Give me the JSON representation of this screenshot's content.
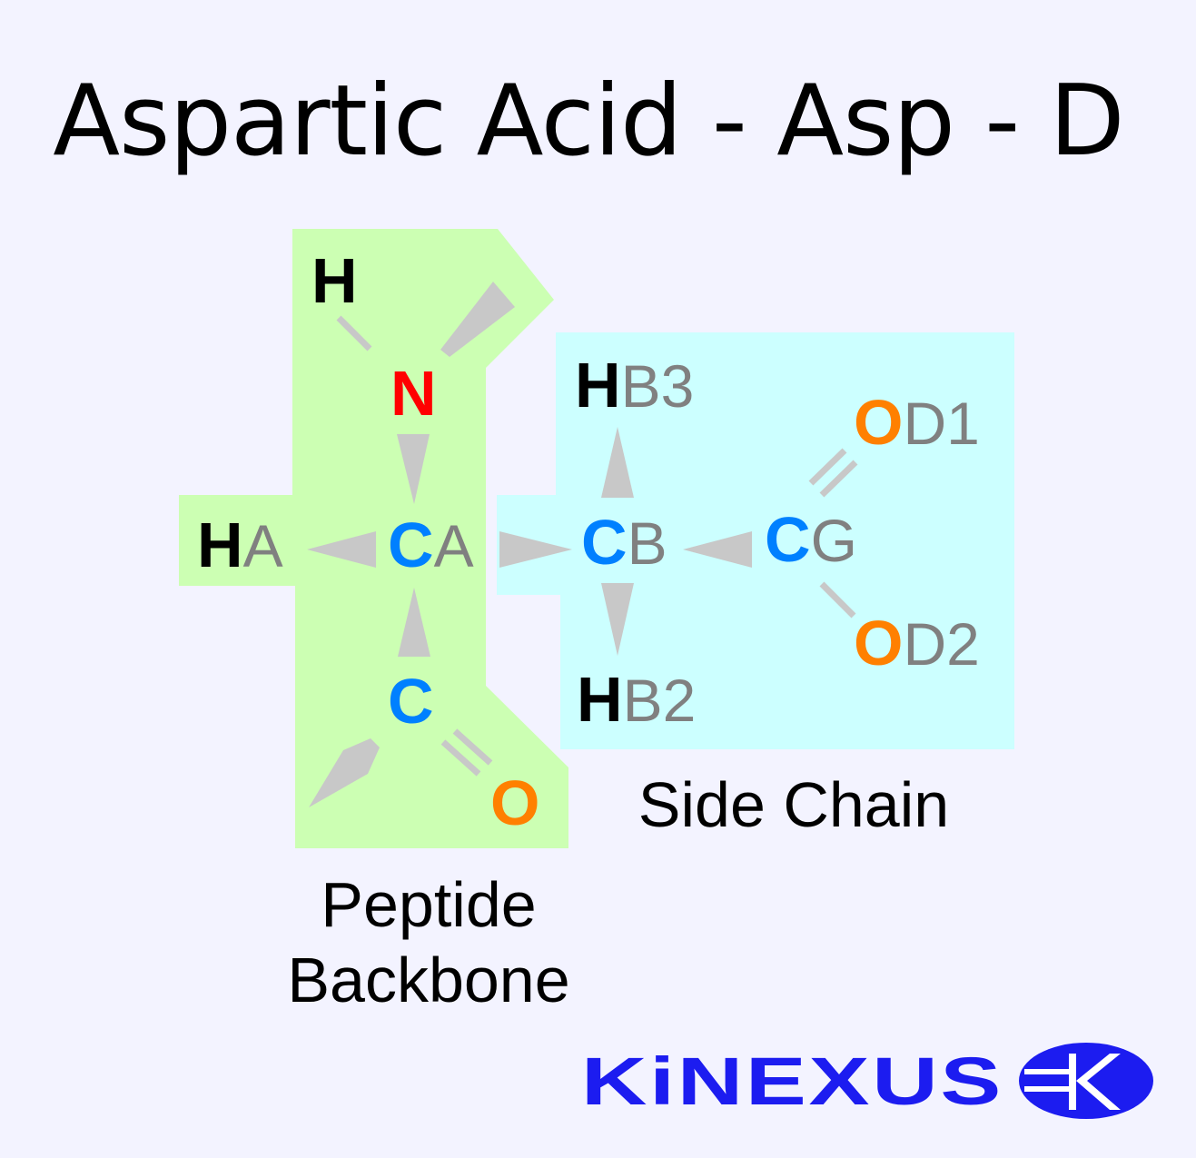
{
  "title": "Aspartic Acid - Asp - D",
  "colors": {
    "background": "#f3f3ff",
    "backbone_region": "#ccffb3",
    "sidechain_region": "#ccffff",
    "hydrogen": "#000000",
    "nitrogen": "#ff0000",
    "carbon": "#0080ff",
    "oxygen": "#ff8000",
    "suffix": "#808080",
    "bond": "#c8c8c8",
    "logo": "#1c1cf0"
  },
  "atoms": {
    "h_amine": {
      "element": "H",
      "suffix": ""
    },
    "n": {
      "element": "N",
      "suffix": ""
    },
    "ha": {
      "element": "H",
      "suffix": "A"
    },
    "ca": {
      "element": "C",
      "suffix": "A"
    },
    "c": {
      "element": "C",
      "suffix": ""
    },
    "o": {
      "element": "O",
      "suffix": ""
    },
    "hb3": {
      "element": "H",
      "suffix": "B3"
    },
    "cb": {
      "element": "C",
      "suffix": "B"
    },
    "hb2": {
      "element": "H",
      "suffix": "B2"
    },
    "cg": {
      "element": "C",
      "suffix": "G"
    },
    "od1": {
      "element": "O",
      "suffix": "D1"
    },
    "od2": {
      "element": "O",
      "suffix": "D2"
    }
  },
  "labels": {
    "side_chain": "Side Chain",
    "peptide_line1": "Peptide",
    "peptide_line2": "Backbone"
  },
  "logo": {
    "text": "KiNEXUS",
    "icon": "kinexus-k-logo-icon"
  }
}
